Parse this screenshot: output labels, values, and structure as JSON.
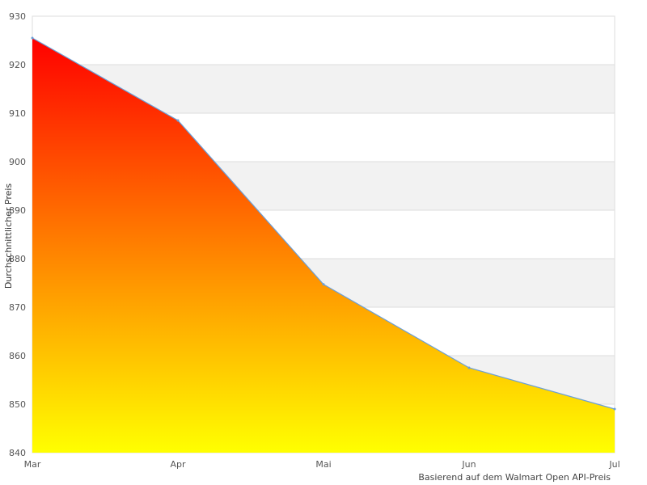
{
  "chart_data": {
    "type": "area",
    "categories": [
      "Mar",
      "Apr",
      "Mai",
      "Jun",
      "Jul"
    ],
    "series": [
      {
        "values": [
          925.5,
          908.5,
          874.7,
          857.5,
          849.0
        ]
      }
    ],
    "ylabel": "Durchschnittlicher Preis",
    "xlabel": "",
    "ylim": [
      840,
      930
    ],
    "yticks": [
      840,
      850,
      860,
      870,
      880,
      890,
      900,
      910,
      920,
      930
    ],
    "grid": "horizontal alternating bands",
    "colors": {
      "fill_top": "#ff0000",
      "fill_bottom": "#ffff00",
      "line": "#6a9fd8",
      "band": "#f2f2f2",
      "gridline": "#dddddd"
    }
  },
  "footer": {
    "source_note": "Basierend auf dem Walmart Open API-Preis"
  }
}
